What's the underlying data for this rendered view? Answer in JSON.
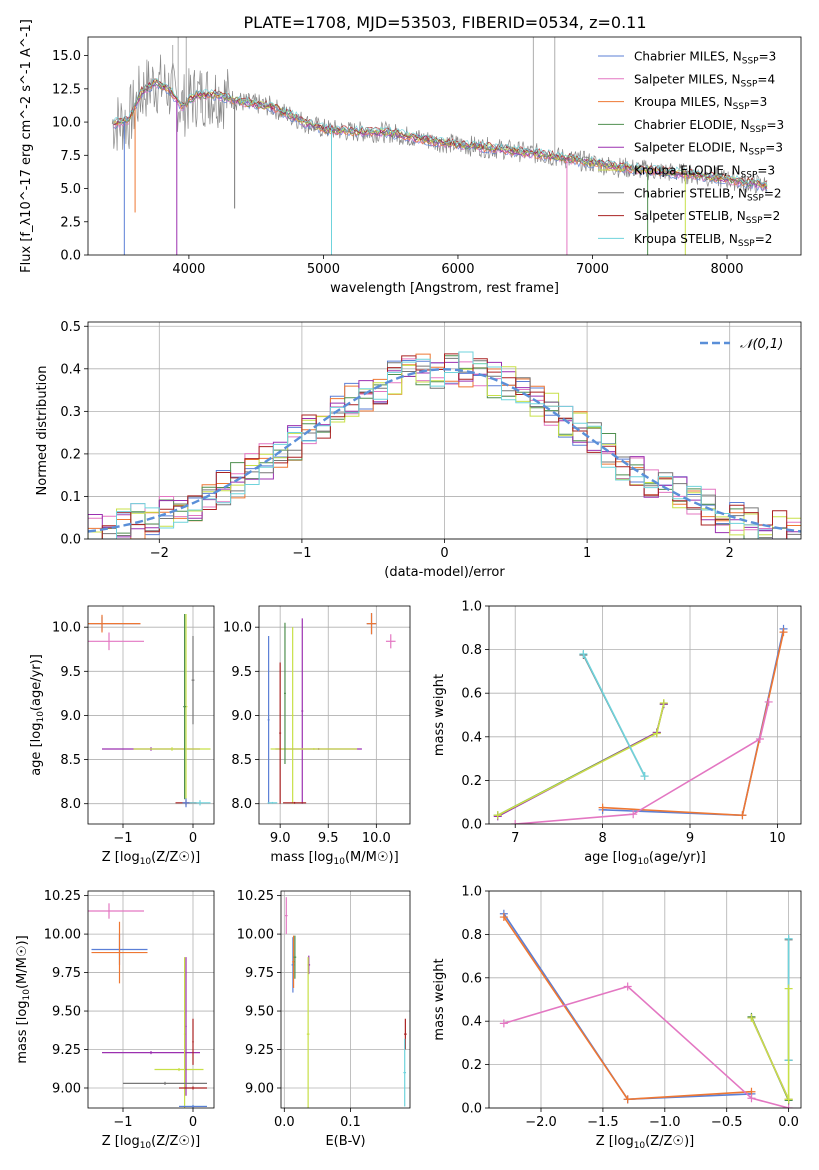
{
  "title": "PLATE=1708, MJD=53503, FIBERID=0534, z=0.11",
  "colors": {
    "chabrier_miles": "#5b7fd6",
    "salpeter_miles": "#e377c2",
    "kroupa_miles": "#ee7733",
    "chabrier_elodie": "#4f8f4f",
    "salpeter_elodie": "#9b30b0",
    "kroupa_elodie": "#c8e048",
    "chabrier_stelib": "#777777",
    "salpeter_stelib": "#aa2222",
    "kroupa_stelib": "#6fd3dc",
    "reference_curve": "#5a8fd8",
    "grid": "#b0b0b0"
  },
  "chart_data": [
    {
      "type": "line",
      "panel": "spectrum",
      "xlabel": "wavelength [Angstrom, rest frame]",
      "ylabel": "Flux [f_λ10^-17 erg cm^-2 s^-1 A^-1]",
      "xlim": [
        3250,
        8550
      ],
      "ylim": [
        0,
        16.4
      ],
      "xticks": [
        "4000",
        "5000",
        "6000",
        "7000",
        "8000"
      ],
      "yticks": [
        "0.0",
        "2.5",
        "5.0",
        "7.5",
        "10.0",
        "12.5",
        "15.0"
      ],
      "grid": false,
      "legend_position": "top-right",
      "legend": [
        {
          "base": "Chabrier MILES, N",
          "sub": "SSP",
          "tail": "=3",
          "color_key": "chabrier_miles"
        },
        {
          "base": "Salpeter MILES, N",
          "sub": "SSP",
          "tail": "=4",
          "color_key": "salpeter_miles"
        },
        {
          "base": "Kroupa MILES, N",
          "sub": "SSP",
          "tail": "=3",
          "color_key": "kroupa_miles"
        },
        {
          "base": "Chabrier ELODIE, N",
          "sub": "SSP",
          "tail": "=3",
          "color_key": "chabrier_elodie"
        },
        {
          "base": "Salpeter ELODIE, N",
          "sub": "SSP",
          "tail": "=3",
          "color_key": "salpeter_elodie"
        },
        {
          "base": "Kroupa ELODIE, N",
          "sub": "SSP",
          "tail": "=3",
          "color_key": "kroupa_elodie"
        },
        {
          "base": "Chabrier STELIB, N",
          "sub": "SSP",
          "tail": "=2",
          "color_key": "chabrier_stelib"
        },
        {
          "base": "Salpeter STELIB, N",
          "sub": "SSP",
          "tail": "=2",
          "color_key": "salpeter_stelib"
        },
        {
          "base": "Kroupa STELIB, N",
          "sub": "SSP",
          "tail": "=2",
          "color_key": "kroupa_stelib"
        }
      ],
      "continuum": [
        [
          3430,
          9.9
        ],
        [
          3550,
          10.1
        ],
        [
          3650,
          12.3
        ],
        [
          3750,
          13.0
        ],
        [
          3850,
          12.5
        ],
        [
          3950,
          11.2
        ],
        [
          4050,
          12.0
        ],
        [
          4200,
          12.1
        ],
        [
          4400,
          11.5
        ],
        [
          4600,
          11.2
        ],
        [
          4800,
          10.3
        ],
        [
          4900,
          9.8
        ],
        [
          5000,
          9.5
        ],
        [
          5200,
          9.3
        ],
        [
          5500,
          9.2
        ],
        [
          5800,
          8.6
        ],
        [
          6000,
          8.3
        ],
        [
          6300,
          8.0
        ],
        [
          6600,
          7.6
        ],
        [
          6900,
          7.1
        ],
        [
          7200,
          6.6
        ],
        [
          7500,
          6.3
        ],
        [
          7800,
          6.0
        ],
        [
          8000,
          5.7
        ],
        [
          8300,
          5.2
        ]
      ],
      "spikes": [
        [
          3880,
          15.8
        ],
        [
          3920,
          16.4
        ],
        [
          6560,
          16.4
        ],
        [
          6720,
          16.4
        ],
        [
          3980,
          16.4
        ]
      ],
      "dips": [
        [
          3520,
          0
        ],
        [
          3600,
          3.2
        ],
        [
          3910,
          0
        ],
        [
          4340,
          3.5
        ],
        [
          5060,
          0
        ],
        [
          6810,
          0
        ],
        [
          7410,
          0
        ],
        [
          7690,
          0
        ]
      ]
    },
    {
      "type": "bar",
      "panel": "residual_histogram",
      "xlabel": "(data-model)/error",
      "ylabel": "Normed distribution",
      "xlim": [
        -2.5,
        2.5
      ],
      "ylim": [
        0,
        0.51
      ],
      "xticks": [
        "−2",
        "−1",
        "0",
        "1",
        "2"
      ],
      "yticks": [
        "0.0",
        "0.1",
        "0.2",
        "0.3",
        "0.4",
        "0.5"
      ],
      "grid": true,
      "legend_position": "top-right",
      "reference_label": "𝒩(0,1)",
      "bin_width": 0.1
    },
    {
      "type": "scatter",
      "panel": "age_vs_metallicity",
      "xlabel_main": "Z [log",
      "xlabel_sub": "10",
      "xlabel_tail": "(Z/Z☉)]",
      "ylabel_main": "age  [log",
      "ylabel_sub": "10",
      "ylabel_tail": "(age/yr)]",
      "xlim": [
        -1.5,
        0.3
      ],
      "ylim": [
        7.77,
        10.24
      ],
      "xticks": [
        "−1",
        "0"
      ],
      "yticks": [
        "8.0",
        "8.5",
        "9.0",
        "9.5",
        "10.0"
      ],
      "grid": true,
      "points": [
        {
          "color_key": "chabrier_miles",
          "x": -1.3,
          "y": 10.04,
          "xerr": 0.55,
          "yerr": 0.08
        },
        {
          "color_key": "kroupa_miles",
          "x": -1.3,
          "y": 10.04,
          "xerr": 0.55,
          "yerr": 0.1
        },
        {
          "color_key": "salpeter_miles",
          "x": -1.2,
          "y": 9.84,
          "xerr": 0.5,
          "yerr": 0.1
        },
        {
          "color_key": "salpeter_elodie",
          "x": -0.6,
          "y": 8.62,
          "xerr": 0.7,
          "yerr": 0.02
        },
        {
          "color_key": "kroupa_elodie",
          "x": -0.3,
          "y": 8.62,
          "xerr": 0.55,
          "yerr": 0.02
        },
        {
          "color_key": "kroupa_elodie",
          "x": -0.1,
          "y": 9.1,
          "xerr": 0.02,
          "yerr": 1.05
        },
        {
          "color_key": "chabrier_elodie",
          "x": -0.12,
          "y": 9.1,
          "xerr": 0.02,
          "yerr": 1.05
        },
        {
          "color_key": "chabrier_stelib",
          "x": 0.0,
          "y": 9.4,
          "xerr": 0.02,
          "yerr": 0.5
        },
        {
          "color_key": "salpeter_stelib",
          "x": -0.1,
          "y": 8.01,
          "xerr": 0.15,
          "yerr": 0.03
        },
        {
          "color_key": "kroupa_stelib",
          "x": 0.1,
          "y": 8.01,
          "xerr": 0.15,
          "yerr": 0.03
        },
        {
          "color_key": "chabrier_miles",
          "x": -0.1,
          "y": 8.01,
          "xerr": 0.05,
          "yerr": 0.05
        }
      ]
    },
    {
      "type": "scatter",
      "panel": "age_vs_mass",
      "xlabel_main": "mass [log",
      "xlabel_sub": "10",
      "xlabel_tail": "(M/M☉)]",
      "xlim": [
        8.78,
        10.35
      ],
      "ylim": [
        7.77,
        10.24
      ],
      "xticks": [
        "9.0",
        "9.5",
        "10.0"
      ],
      "yticks": [
        "8.0",
        "8.5",
        "9.0",
        "9.5",
        "10.0"
      ],
      "grid": true,
      "points": [
        {
          "color_key": "chabrier_miles",
          "x": 9.95,
          "y": 10.04,
          "xerr": 0.05,
          "yerr": 0.12
        },
        {
          "color_key": "kroupa_miles",
          "x": 9.95,
          "y": 10.04,
          "xerr": 0.05,
          "yerr": 0.12
        },
        {
          "color_key": "salpeter_miles",
          "x": 10.15,
          "y": 9.84,
          "xerr": 0.05,
          "yerr": 0.08
        },
        {
          "color_key": "chabrier_miles",
          "x": 8.88,
          "y": 8.95,
          "xerr": 0.01,
          "yerr": 0.95
        },
        {
          "color_key": "salpeter_elodie",
          "x": 9.23,
          "y": 9.05,
          "xerr": 0.01,
          "yerr": 1.05
        },
        {
          "color_key": "kroupa_elodie",
          "x": 9.13,
          "y": 9.0,
          "xerr": 0.01,
          "yerr": 1.0
        },
        {
          "color_key": "salpeter_elodie",
          "x": 9.4,
          "y": 8.62,
          "xerr": 0.45,
          "yerr": 0.01
        },
        {
          "color_key": "kroupa_elodie",
          "x": 9.35,
          "y": 8.62,
          "xerr": 0.45,
          "yerr": 0.01
        },
        {
          "color_key": "chabrier_elodie",
          "x": 9.05,
          "y": 9.25,
          "xerr": 0.01,
          "yerr": 0.8
        },
        {
          "color_key": "salpeter_stelib",
          "x": 9.0,
          "y": 8.8,
          "xerr": 0.01,
          "yerr": 0.8
        },
        {
          "color_key": "salpeter_stelib",
          "x": 9.15,
          "y": 8.01,
          "xerr": 0.12,
          "yerr": 0.01
        },
        {
          "color_key": "kroupa_stelib",
          "x": 8.92,
          "y": 8.01,
          "xerr": 0.05,
          "yerr": 0.01
        }
      ]
    },
    {
      "type": "line",
      "panel": "mass_weight_vs_age",
      "xlabel_main": "age  [log",
      "xlabel_sub": "10",
      "xlabel_tail": "(age/yr)]",
      "ylabel": "mass weight",
      "xlim": [
        6.7,
        10.27
      ],
      "ylim": [
        0,
        1
      ],
      "xticks": [
        "7",
        "8",
        "9",
        "10"
      ],
      "yticks": [
        "0.0",
        "0.2",
        "0.4",
        "0.6",
        "0.8",
        "1.0"
      ],
      "grid": true,
      "series": [
        {
          "color_key": "chabrier_miles",
          "points": [
            [
              8.0,
              0.065
            ],
            [
              9.6,
              0.04
            ],
            [
              10.07,
              0.895
            ]
          ]
        },
        {
          "color_key": "kroupa_miles",
          "points": [
            [
              8.0,
              0.075
            ],
            [
              9.6,
              0.04
            ],
            [
              10.07,
              0.88
            ]
          ]
        },
        {
          "color_key": "salpeter_miles",
          "points": [
            [
              7.0,
              0.0
            ],
            [
              8.35,
              0.045
            ],
            [
              9.8,
              0.39
            ],
            [
              9.9,
              0.56
            ]
          ]
        },
        {
          "color_key": "chabrier_elodie",
          "points": [
            [
              6.8,
              0.04
            ],
            [
              8.62,
              0.42
            ],
            [
              8.7,
              0.55
            ]
          ]
        },
        {
          "color_key": "salpeter_elodie",
          "points": [
            [
              6.8,
              0.035
            ],
            [
              8.62,
              0.42
            ],
            [
              8.7,
              0.55
            ]
          ]
        },
        {
          "color_key": "kroupa_elodie",
          "points": [
            [
              6.8,
              0.04
            ],
            [
              8.62,
              0.415
            ],
            [
              8.7,
              0.555
            ]
          ]
        },
        {
          "color_key": "chabrier_stelib",
          "points": [
            [
              7.78,
              0.775
            ],
            [
              8.48,
              0.22
            ]
          ]
        },
        {
          "color_key": "kroupa_stelib",
          "points": [
            [
              7.78,
              0.78
            ],
            [
              8.48,
              0.22
            ]
          ]
        }
      ]
    },
    {
      "type": "scatter",
      "panel": "mass_vs_metallicity",
      "xlabel_main": "Z [log",
      "xlabel_sub": "10",
      "xlabel_tail": "(Z/Z☉)]",
      "ylabel_main": "mass [log",
      "ylabel_sub": "10",
      "ylabel_tail": "(M/M☉)]",
      "xlim": [
        -1.5,
        0.3
      ],
      "ylim": [
        8.87,
        10.28
      ],
      "xticks": [
        "−1",
        "0"
      ],
      "yticks": [
        "9.00",
        "9.25",
        "9.50",
        "9.75",
        "10.00",
        "10.25"
      ],
      "grid": true,
      "points": [
        {
          "color_key": "salpeter_miles",
          "x": -1.2,
          "y": 10.15,
          "xerr": 0.5,
          "yerr": 0.05
        },
        {
          "color_key": "chabrier_miles",
          "x": -1.05,
          "y": 9.9,
          "xerr": 0.4,
          "yerr": 0.1
        },
        {
          "color_key": "kroupa_miles",
          "x": -1.05,
          "y": 9.88,
          "xerr": 0.4,
          "yerr": 0.2
        },
        {
          "color_key": "salpeter_elodie",
          "x": -0.6,
          "y": 9.23,
          "xerr": 0.7,
          "yerr": 0.01
        },
        {
          "color_key": "kroupa_elodie",
          "x": -0.2,
          "y": 9.12,
          "xerr": 0.35,
          "yerr": 0.01
        },
        {
          "color_key": "salpeter_elodie",
          "x": -0.1,
          "y": 9.4,
          "xerr": 0.01,
          "yerr": 0.45
        },
        {
          "color_key": "kroupa_elodie",
          "x": -0.12,
          "y": 9.35,
          "xerr": 0.01,
          "yerr": 0.5
        },
        {
          "color_key": "chabrier_stelib",
          "x": -0.4,
          "y": 9.03,
          "xerr": 0.6,
          "yerr": 0.01
        },
        {
          "color_key": "salpeter_stelib",
          "x": 0.0,
          "y": 9.3,
          "xerr": 0.01,
          "yerr": 0.15
        },
        {
          "color_key": "salpeter_stelib",
          "x": 0.0,
          "y": 9.0,
          "xerr": 0.2,
          "yerr": 0.01
        },
        {
          "color_key": "kroupa_stelib",
          "x": 0.0,
          "y": 8.88,
          "xerr": 0.2,
          "yerr": 0.01
        },
        {
          "color_key": "chabrier_miles",
          "x": 0.0,
          "y": 8.88,
          "xerr": 0.2,
          "yerr": 0.01
        }
      ]
    },
    {
      "type": "scatter",
      "panel": "mass_vs_extinction",
      "xlabel": "E(B-V)",
      "xlim": [
        -0.005,
        0.19
      ],
      "ylim": [
        8.87,
        10.28
      ],
      "xticks": [
        "0.0",
        "0.1"
      ],
      "yticks": [
        "9.00",
        "9.25",
        "9.50",
        "9.75",
        "10.00",
        "10.25"
      ],
      "grid": true,
      "points": [
        {
          "color_key": "salpeter_miles",
          "x": 0.003,
          "y": 10.12,
          "xerr": 0.002,
          "yerr": 0.12
        },
        {
          "color_key": "chabrier_miles",
          "x": 0.013,
          "y": 9.8,
          "xerr": 0.002,
          "yerr": 0.18
        },
        {
          "color_key": "kroupa_miles",
          "x": 0.014,
          "y": 9.82,
          "xerr": 0.002,
          "yerr": 0.17
        },
        {
          "color_key": "chabrier_elodie",
          "x": 0.016,
          "y": 9.85,
          "xerr": 0.002,
          "yerr": 0.14
        },
        {
          "color_key": "salpeter_elodie",
          "x": 0.037,
          "y": 9.8,
          "xerr": 0.002,
          "yerr": 0.06
        },
        {
          "color_key": "kroupa_elodie",
          "x": 0.036,
          "y": 9.35,
          "xerr": 0.002,
          "yerr": 0.5
        },
        {
          "color_key": "salpeter_stelib",
          "x": 0.183,
          "y": 9.35,
          "xerr": 0.002,
          "yerr": 0.1
        },
        {
          "color_key": "kroupa_stelib",
          "x": 0.182,
          "y": 9.1,
          "xerr": 0.002,
          "yerr": 0.22
        }
      ]
    },
    {
      "type": "line",
      "panel": "mass_weight_vs_metallicity",
      "xlabel_main": "Z [log",
      "xlabel_sub": "10",
      "xlabel_tail": "(Z/Z☉)]",
      "ylabel": "mass weight",
      "xlim": [
        -2.42,
        0.1
      ],
      "ylim": [
        0,
        1
      ],
      "xticks": [
        "−2.0",
        "−1.5",
        "−1.0",
        "−0.5",
        "0.0"
      ],
      "yticks": [
        "0.0",
        "0.2",
        "0.4",
        "0.6",
        "0.8",
        "1.0"
      ],
      "grid": true,
      "series": [
        {
          "color_key": "chabrier_miles",
          "points": [
            [
              -2.3,
              0.895
            ],
            [
              -1.3,
              0.04
            ],
            [
              -0.3,
              0.065
            ]
          ]
        },
        {
          "color_key": "kroupa_miles",
          "points": [
            [
              -2.3,
              0.88
            ],
            [
              -1.3,
              0.04
            ],
            [
              -0.3,
              0.075
            ]
          ]
        },
        {
          "color_key": "salpeter_miles",
          "points": [
            [
              -2.3,
              0.39
            ],
            [
              -1.3,
              0.56
            ],
            [
              -0.3,
              0.045
            ],
            [
              0.0,
              0.0
            ]
          ]
        },
        {
          "color_key": "chabrier_elodie",
          "points": [
            [
              -0.3,
              0.42
            ],
            [
              0.0,
              0.035
            ]
          ]
        },
        {
          "color_key": "salpeter_elodie",
          "points": [
            [
              -0.3,
              0.415
            ],
            [
              0.0,
              0.04
            ]
          ]
        },
        {
          "color_key": "kroupa_elodie",
          "points": [
            [
              -0.3,
              0.415
            ],
            [
              0.0,
              0.04
            ]
          ]
        },
        {
          "color_key": "chabrier_stelib",
          "points": [
            [
              0.0,
              0.775
            ],
            [
              0.0,
              0.22
            ]
          ]
        },
        {
          "color_key": "kroupa_stelib",
          "points": [
            [
              0.0,
              0.78
            ],
            [
              0.0,
              0.22
            ]
          ]
        },
        {
          "color_key": "kroupa_elodie",
          "points": [
            [
              0.0,
              0.55
            ],
            [
              0.0,
              0.04
            ]
          ]
        }
      ]
    }
  ]
}
